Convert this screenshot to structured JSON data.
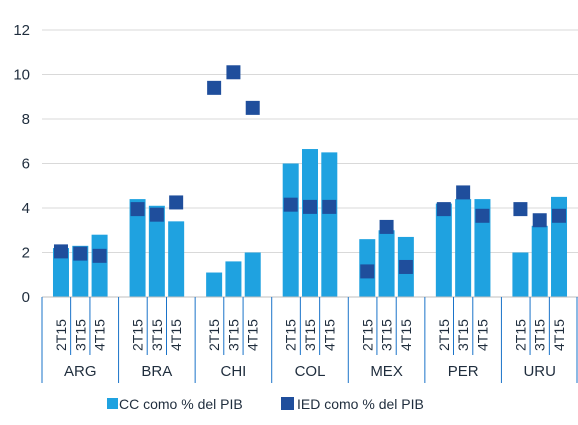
{
  "chart_data": {
    "type": "bar",
    "title": "",
    "xlabel": "",
    "ylabel": "",
    "ylim": [
      0,
      12
    ],
    "yticks": [
      0,
      2,
      4,
      6,
      8,
      10,
      12
    ],
    "grid": true,
    "legend_position": "bottom",
    "groups": [
      "ARG",
      "BRA",
      "CHI",
      "COL",
      "MEX",
      "PER",
      "URU"
    ],
    "periods": [
      "2T15",
      "3T15",
      "4T15"
    ],
    "series": [
      {
        "name": "CC como % del PIB",
        "mark": "bar",
        "color": "#1fa2e0",
        "values": [
          [
            2.2,
            2.3,
            2.8
          ],
          [
            4.4,
            4.1,
            3.4
          ],
          [
            1.1,
            1.6,
            2.0
          ],
          [
            6.0,
            6.65,
            6.5
          ],
          [
            2.6,
            3.0,
            2.7
          ],
          [
            4.2,
            4.4,
            4.4
          ],
          [
            2.0,
            3.2,
            4.5
          ]
        ]
      },
      {
        "name": "IED como % del PIB",
        "mark": "square",
        "color": "#1f4e9c",
        "values": [
          [
            2.05,
            1.95,
            1.85
          ],
          [
            3.95,
            3.7,
            4.25
          ],
          [
            9.4,
            10.1,
            8.5
          ],
          [
            4.15,
            4.05,
            4.05
          ],
          [
            1.15,
            3.15,
            1.35
          ],
          [
            3.95,
            4.7,
            3.65
          ],
          [
            3.95,
            3.45,
            3.65
          ]
        ]
      }
    ]
  }
}
